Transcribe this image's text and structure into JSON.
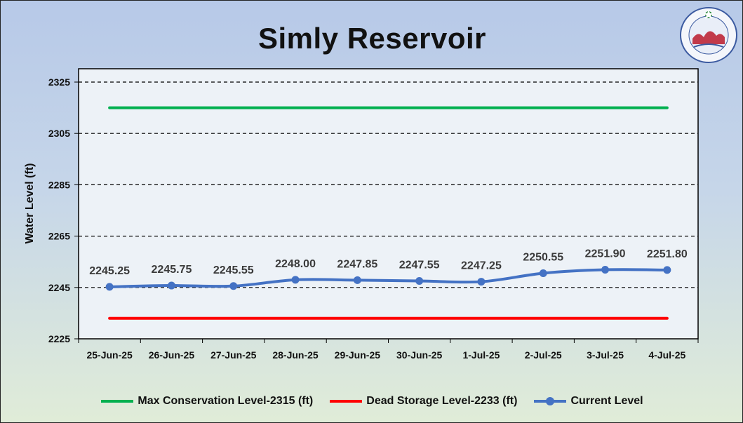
{
  "chart_data": {
    "type": "line",
    "title": "Simly Reservoir",
    "xlabel": "",
    "ylabel": "Water Level (ft)",
    "ylim": [
      2225,
      2325
    ],
    "yticks": [
      2225,
      2245,
      2265,
      2285,
      2305,
      2325
    ],
    "categories": [
      "25-Jun-25",
      "26-Jun-25",
      "27-Jun-25",
      "28-Jun-25",
      "29-Jun-25",
      "30-Jun-25",
      "1-Jul-25",
      "2-Jul-25",
      "3-Jul-25",
      "4-Jul-25"
    ],
    "series": [
      {
        "name": "Max Conservation Level-2315 (ft)",
        "color": "#00b050",
        "values": [
          2315,
          2315,
          2315,
          2315,
          2315,
          2315,
          2315,
          2315,
          2315,
          2315
        ]
      },
      {
        "name": "Dead Storage Level-2233 (ft)",
        "color": "#ff0000",
        "values": [
          2233,
          2233,
          2233,
          2233,
          2233,
          2233,
          2233,
          2233,
          2233,
          2233
        ]
      },
      {
        "name": "Current Level",
        "color": "#4472c4",
        "markers": true,
        "values": [
          2245.25,
          2245.75,
          2245.55,
          2248.0,
          2247.85,
          2247.55,
          2247.25,
          2250.55,
          2251.9,
          2251.8
        ]
      }
    ],
    "data_labels": [
      "2245.25",
      "2245.75",
      "2245.55",
      "2248.00",
      "2247.85",
      "2247.55",
      "2247.25",
      "2250.55",
      "2251.90",
      "2251.80"
    ],
    "grid": "horizontal dashed",
    "legend_position": "bottom"
  }
}
